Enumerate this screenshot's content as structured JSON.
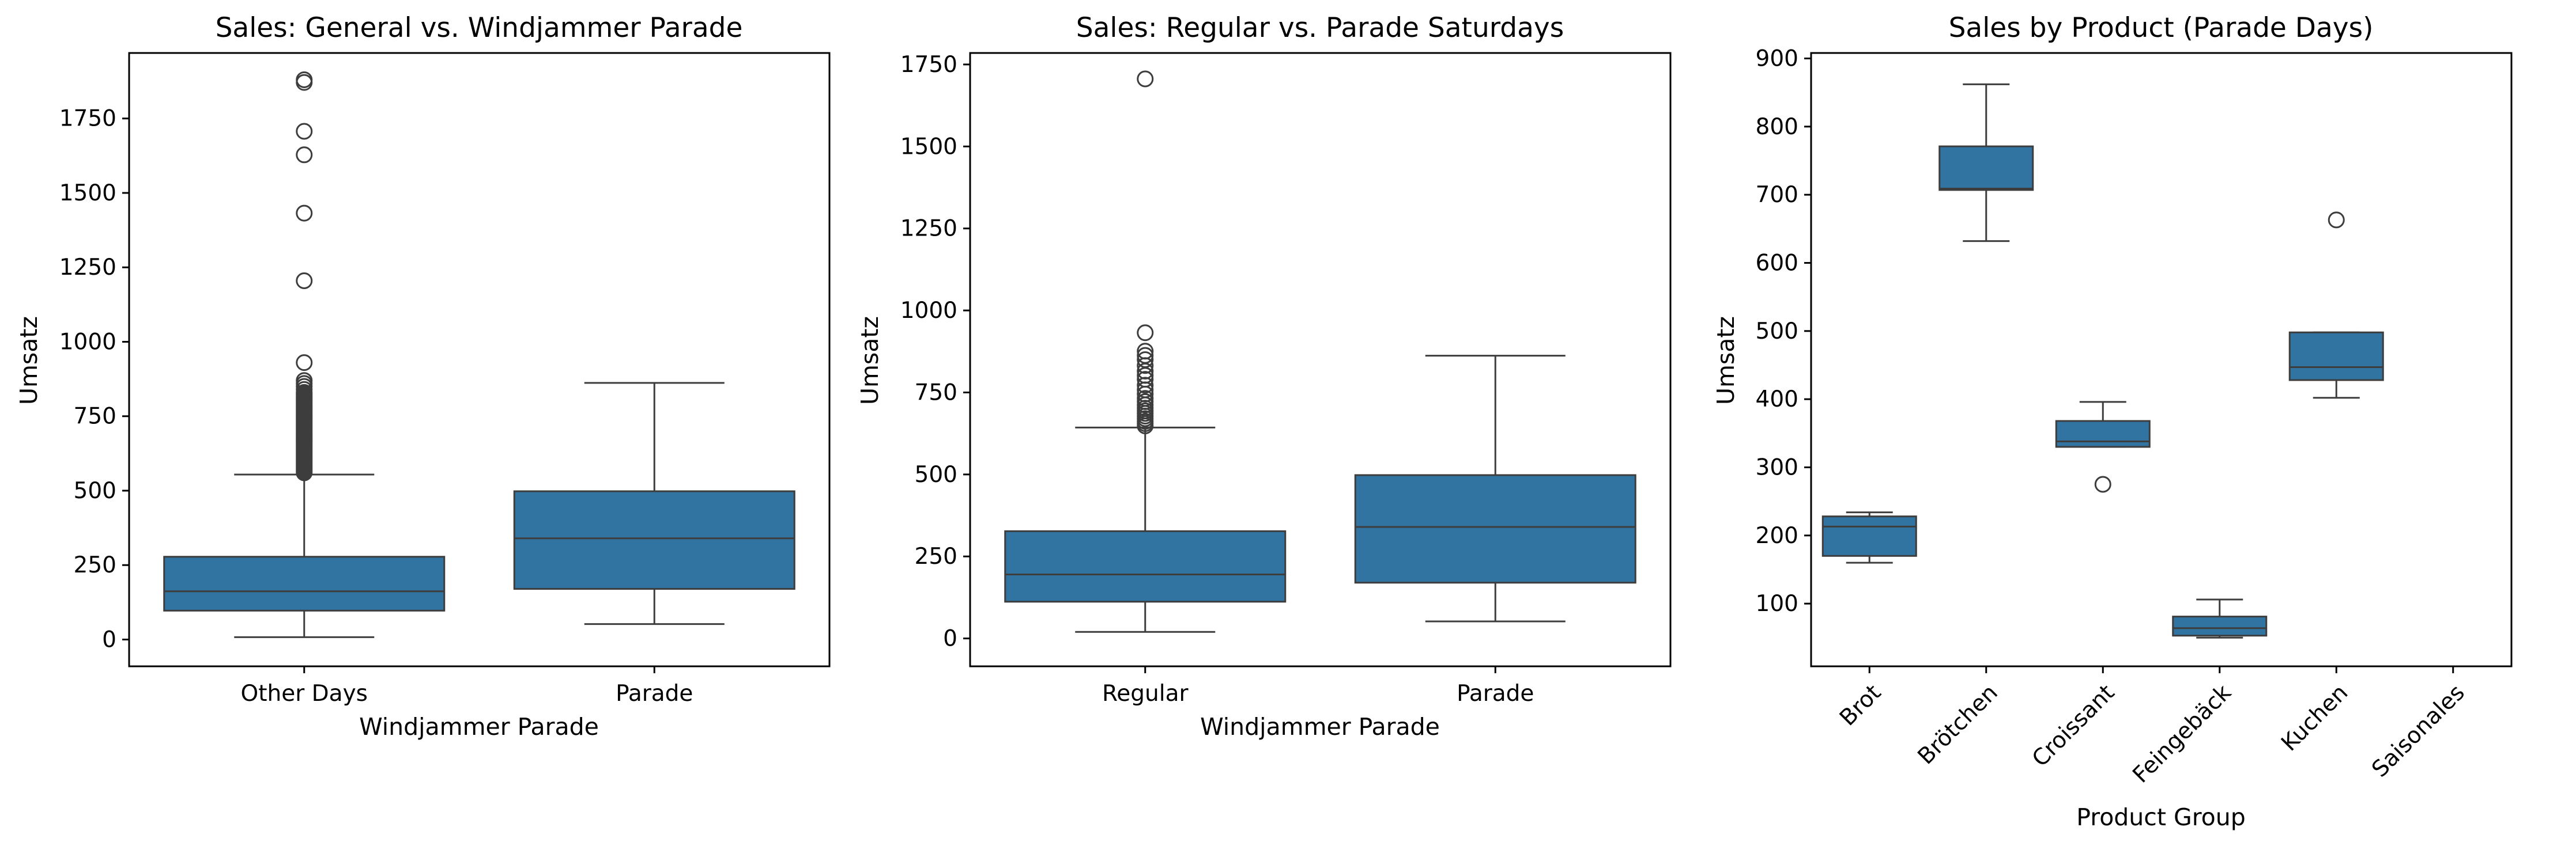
{
  "colors": {
    "box_fill": "#3274a1",
    "line": "#3d3d3d",
    "frame": "#000000",
    "background": "#ffffff"
  },
  "chart_data": [
    {
      "type": "box",
      "title": "Sales: General vs. Windjammer Parade",
      "xlabel": "Windjammer Parade",
      "ylabel": "Umsatz",
      "ylim": [
        -90,
        1970
      ],
      "yticks": [
        0,
        250,
        500,
        750,
        1000,
        1250,
        1500,
        1750
      ],
      "grid": false,
      "categories": [
        "Other Days",
        "Parade"
      ],
      "boxes": [
        {
          "category": "Other Days",
          "whisker_low": 8,
          "q1": 97,
          "median": 162,
          "q3": 278,
          "whisker_high": 554,
          "outliers": [
            560,
            565,
            570,
            575,
            580,
            585,
            590,
            595,
            600,
            605,
            610,
            615,
            620,
            625,
            630,
            635,
            640,
            645,
            650,
            655,
            660,
            665,
            670,
            675,
            680,
            685,
            690,
            695,
            700,
            705,
            710,
            715,
            720,
            725,
            730,
            735,
            740,
            745,
            750,
            755,
            760,
            765,
            770,
            775,
            780,
            785,
            790,
            795,
            800,
            805,
            810,
            815,
            820,
            825,
            830,
            840,
            850,
            860,
            870,
            930,
            1205,
            1432,
            1628,
            1707,
            1871,
            1880
          ]
        },
        {
          "category": "Parade",
          "whisker_low": 52,
          "q1": 170,
          "median": 340,
          "q3": 498,
          "whisker_high": 862,
          "outliers": []
        }
      ]
    },
    {
      "type": "box",
      "title": "Sales: Regular vs. Parade Saturdays",
      "xlabel": "Windjammer Parade",
      "ylabel": "Umsatz",
      "ylim": [
        -85,
        1785
      ],
      "yticks": [
        0,
        250,
        500,
        750,
        1000,
        1250,
        1500,
        1750
      ],
      "grid": false,
      "categories": [
        "Regular",
        "Parade"
      ],
      "boxes": [
        {
          "category": "Regular",
          "whisker_low": 20,
          "q1": 112,
          "median": 195,
          "q3": 327,
          "whisker_high": 643,
          "outliers": [
            648,
            655,
            662,
            670,
            678,
            686,
            694,
            702,
            712,
            722,
            732,
            745,
            758,
            772,
            790,
            802,
            815,
            832,
            850,
            863,
            876,
            932,
            1706
          ]
        },
        {
          "category": "Parade",
          "whisker_low": 52,
          "q1": 170,
          "median": 340,
          "q3": 498,
          "whisker_high": 862,
          "outliers": []
        }
      ]
    },
    {
      "type": "box",
      "title": "Sales by Product (Parade Days)",
      "xlabel": "Product Group",
      "ylabel": "Umsatz",
      "ylim": [
        8,
        908
      ],
      "yticks": [
        100,
        200,
        300,
        400,
        500,
        600,
        700,
        800,
        900
      ],
      "grid": false,
      "categories": [
        "Brot",
        "Brötchen",
        "Croissant",
        "Feingebäck",
        "Kuchen",
        "Saisonales"
      ],
      "boxes": [
        {
          "category": "Brot",
          "whisker_low": 160,
          "q1": 170,
          "median": 213,
          "q3": 228,
          "whisker_high": 234,
          "outliers": []
        },
        {
          "category": "Brötchen",
          "whisker_low": 632,
          "q1": 707,
          "median": 709,
          "q3": 771,
          "whisker_high": 862,
          "outliers": []
        },
        {
          "category": "Croissant",
          "whisker_low": 330,
          "q1": 330,
          "median": 338,
          "q3": 368,
          "whisker_high": 396,
          "outliers": [
            275
          ]
        },
        {
          "category": "Feingebäck",
          "whisker_low": 50,
          "q1": 53,
          "median": 64,
          "q3": 81,
          "whisker_high": 106,
          "outliers": []
        },
        {
          "category": "Kuchen",
          "whisker_low": 402,
          "q1": 428,
          "median": 447,
          "q3": 498,
          "whisker_high": 498,
          "outliers": [
            663
          ]
        },
        {
          "category": "Saisonales",
          "whisker_low": null,
          "q1": null,
          "median": null,
          "q3": null,
          "whisker_high": null,
          "outliers": []
        }
      ]
    }
  ]
}
